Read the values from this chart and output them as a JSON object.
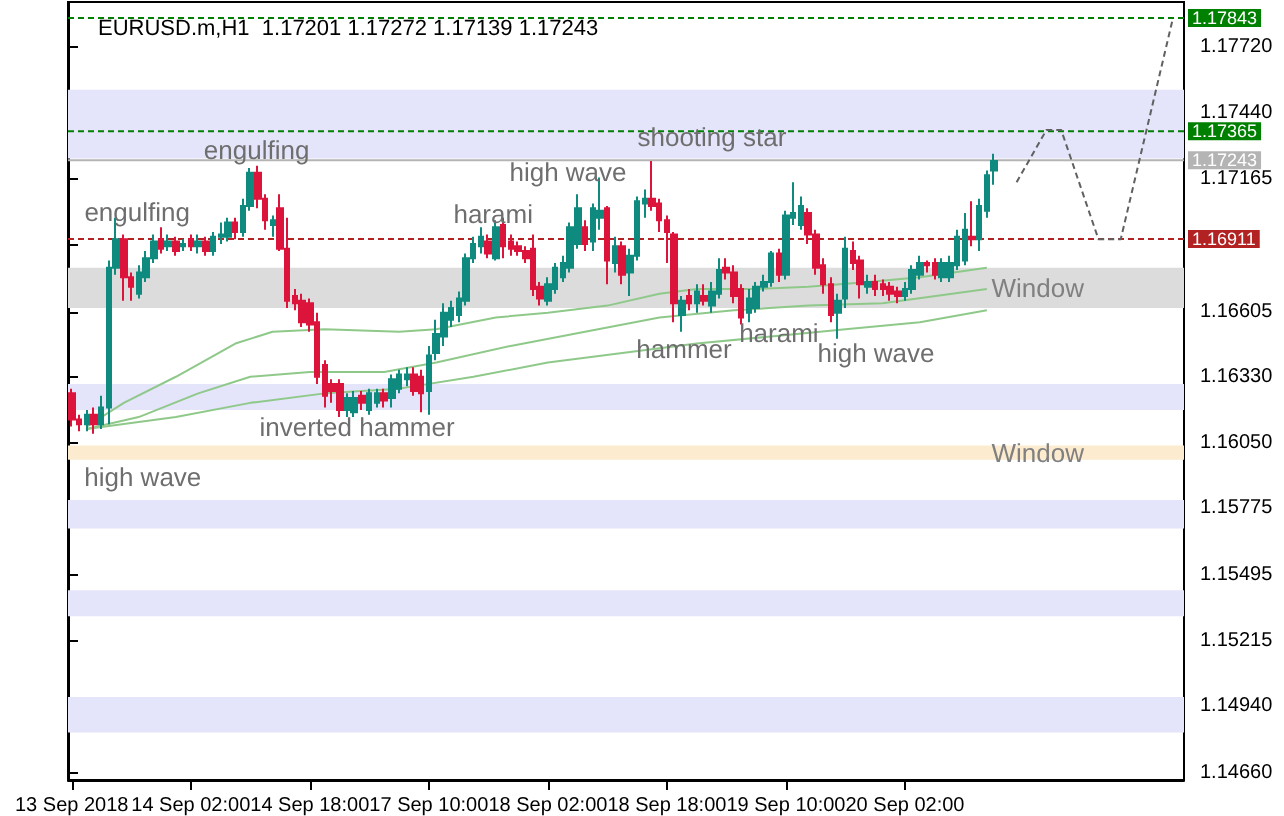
{
  "chart_data": {
    "type": "candlestick",
    "title": "EURUSD.m,H1  1.17201 1.17272 1.17139 1.17243",
    "categories": [
      "13 Sep 2018",
      null,
      null,
      null,
      null,
      null,
      null,
      null,
      null,
      null,
      null,
      null,
      null,
      null,
      null,
      null,
      "14 Sep 02:00",
      null,
      null,
      null,
      null,
      null,
      null,
      null,
      null,
      null,
      null,
      null,
      null,
      null,
      null,
      null,
      "14 Sep 18:00",
      null,
      null,
      null,
      null,
      null,
      null,
      null,
      null,
      null,
      null,
      null,
      null,
      null,
      null,
      null,
      "17 Sep 10:00",
      null,
      null,
      null,
      null,
      null,
      null,
      null,
      null,
      null,
      null,
      null,
      null,
      null,
      null,
      null,
      "18 Sep 02:00",
      null,
      null,
      null,
      null,
      null,
      null,
      null,
      null,
      null,
      null,
      null,
      null,
      null,
      null,
      null,
      "18 Sep 18:00",
      null,
      null,
      null,
      null,
      null,
      null,
      null,
      null,
      null,
      null,
      null,
      null,
      null,
      null,
      null,
      "19 Sep 10:00",
      null,
      null,
      null,
      null,
      null,
      null,
      null,
      null,
      null,
      null,
      null,
      null,
      null,
      null,
      null,
      "20 Sep 02:00",
      null,
      null,
      null,
      null,
      null,
      null,
      null,
      null,
      null,
      null,
      null,
      null,
      null,
      null,
      null,
      null,
      null,
      null,
      null,
      null,
      null,
      null,
      null,
      null,
      null,
      null,
      null,
      null,
      null,
      null,
      null,
      null,
      null,
      null,
      null,
      null,
      null
    ],
    "ohlc": [
      [
        1.1626,
        1.1628,
        1.1612,
        1.1615
      ],
      [
        1.1615,
        1.1617,
        1.161,
        1.1613
      ],
      [
        1.1613,
        1.1619,
        1.161,
        1.1617
      ],
      [
        1.1617,
        1.162,
        1.1609,
        1.1613
      ],
      [
        1.1613,
        1.1625,
        1.1611,
        1.162
      ],
      [
        1.162,
        1.1682,
        1.1613,
        1.1679
      ],
      [
        1.1679,
        1.17,
        1.1676,
        1.1691
      ],
      [
        1.1691,
        1.1693,
        1.1665,
        1.1675
      ],
      [
        1.1675,
        1.1677,
        1.1665,
        1.1671
      ],
      [
        1.1668,
        1.168,
        1.1666,
        1.1677
      ],
      [
        1.1675,
        1.1686,
        1.1673,
        1.1683
      ],
      [
        1.1683,
        1.1693,
        1.1681,
        1.169
      ],
      [
        1.1691,
        1.1696,
        1.1685,
        1.1687
      ],
      [
        1.1688,
        1.1693,
        1.1686,
        1.169
      ],
      [
        1.169,
        1.1692,
        1.1684,
        1.1686
      ],
      [
        1.1688,
        1.1691,
        1.1686,
        1.1689
      ],
      [
        1.1691,
        1.1693,
        1.1686,
        1.1688
      ],
      [
        1.1688,
        1.1693,
        1.1685,
        1.169
      ],
      [
        1.169,
        1.1692,
        1.1684,
        1.1686
      ],
      [
        1.1686,
        1.1694,
        1.1684,
        1.1692
      ],
      [
        1.1692,
        1.1698,
        1.1689,
        1.1693
      ],
      [
        1.1692,
        1.17,
        1.169,
        1.1698
      ],
      [
        1.1698,
        1.17,
        1.1691,
        1.1694
      ],
      [
        1.1694,
        1.1708,
        1.1692,
        1.1705
      ],
      [
        1.1705,
        1.1721,
        1.1703,
        1.1719
      ],
      [
        1.1719,
        1.1722,
        1.1704,
        1.1708
      ],
      [
        1.1708,
        1.171,
        1.1695,
        1.1699
      ],
      [
        1.1697,
        1.1701,
        1.1692,
        1.1699
      ],
      [
        1.1704,
        1.171,
        1.1686,
        1.1687
      ],
      [
        1.1687,
        1.17,
        1.1662,
        1.1665
      ],
      [
        1.1667,
        1.167,
        1.1661,
        1.1664
      ],
      [
        1.1665,
        1.1668,
        1.1654,
        1.1656
      ],
      [
        1.1664,
        1.1666,
        1.1652,
        1.1655
      ],
      [
        1.1656,
        1.166,
        1.163,
        1.1633
      ],
      [
        1.1638,
        1.164,
        1.162,
        1.1625
      ],
      [
        1.163,
        1.1632,
        1.1622,
        1.1627
      ],
      [
        1.163,
        1.1632,
        1.1616,
        1.1619
      ],
      [
        1.1619,
        1.1626,
        1.1616,
        1.1624
      ],
      [
        1.1618,
        1.1627,
        1.1616,
        1.1624
      ],
      [
        1.1625,
        1.1627,
        1.1619,
        1.1622
      ],
      [
        1.1619,
        1.1628,
        1.1617,
        1.1626
      ],
      [
        1.1622,
        1.1628,
        1.162,
        1.1626
      ],
      [
        1.1626,
        1.1628,
        1.162,
        1.1623
      ],
      [
        1.1624,
        1.1634,
        1.162,
        1.1632
      ],
      [
        1.1628,
        1.1636,
        1.1626,
        1.1634
      ],
      [
        1.1632,
        1.1637,
        1.1629,
        1.1634
      ],
      [
        1.1634,
        1.1637,
        1.1625,
        1.1627
      ],
      [
        1.1633,
        1.1636,
        1.1618,
        1.1626
      ],
      [
        1.1627,
        1.1646,
        1.1617,
        1.1642
      ],
      [
        1.1643,
        1.1657,
        1.164,
        1.1651
      ],
      [
        1.165,
        1.1664,
        1.1646,
        1.166
      ],
      [
        1.1657,
        1.1665,
        1.1654,
        1.1662
      ],
      [
        1.1659,
        1.1669,
        1.1656,
        1.1666
      ],
      [
        1.1665,
        1.1685,
        1.1663,
        1.1683
      ],
      [
        1.1683,
        1.1692,
        1.1681,
        1.1689
      ],
      [
        1.1688,
        1.1696,
        1.1685,
        1.1692
      ],
      [
        1.169,
        1.1693,
        1.1683,
        1.1685
      ],
      [
        1.1683,
        1.1699,
        1.1682,
        1.1696
      ],
      [
        1.1697,
        1.17,
        1.1683,
        1.1688
      ],
      [
        1.169,
        1.1693,
        1.1684,
        1.1687
      ],
      [
        1.1688,
        1.169,
        1.1684,
        1.1686
      ],
      [
        1.1686,
        1.1688,
        1.1681,
        1.1683
      ],
      [
        1.1687,
        1.1693,
        1.1667,
        1.167
      ],
      [
        1.1671,
        1.1673,
        1.1663,
        1.1666
      ],
      [
        1.1665,
        1.1675,
        1.1663,
        1.1672
      ],
      [
        1.167,
        1.1681,
        1.1668,
        1.1679
      ],
      [
        1.1675,
        1.1684,
        1.1673,
        1.1681
      ],
      [
        1.1679,
        1.1698,
        1.1677,
        1.1696
      ],
      [
        1.1689,
        1.171,
        1.1687,
        1.1704
      ],
      [
        1.1696,
        1.1699,
        1.1686,
        1.1689
      ],
      [
        1.169,
        1.1706,
        1.1686,
        1.1704
      ],
      [
        1.17,
        1.1717,
        1.1695,
        1.1703
      ],
      [
        1.1704,
        1.1705,
        1.1672,
        1.1682
      ],
      [
        1.1681,
        1.1692,
        1.1677,
        1.1688
      ],
      [
        1.1688,
        1.169,
        1.1672,
        1.1676
      ],
      [
        1.1677,
        1.1687,
        1.1667,
        1.1684
      ],
      [
        1.1684,
        1.1709,
        1.1682,
        1.1707
      ],
      [
        1.1706,
        1.1712,
        1.17,
        1.1708
      ],
      [
        1.1708,
        1.1724,
        1.1703,
        1.1705
      ],
      [
        1.1706,
        1.1708,
        1.1694,
        1.1699
      ],
      [
        1.1699,
        1.1701,
        1.1681,
        1.1694
      ],
      [
        1.1693,
        1.1694,
        1.1656,
        1.1664
      ],
      [
        1.1659,
        1.1667,
        1.1652,
        1.1665
      ],
      [
        1.1667,
        1.167,
        1.1661,
        1.1664
      ],
      [
        1.1664,
        1.1672,
        1.166,
        1.1669
      ],
      [
        1.1667,
        1.1672,
        1.1663,
        1.1665
      ],
      [
        1.1663,
        1.1673,
        1.166,
        1.1669
      ],
      [
        1.1668,
        1.1683,
        1.1666,
        1.1678
      ],
      [
        1.1679,
        1.1683,
        1.1674,
        1.1677
      ],
      [
        1.1677,
        1.168,
        1.1664,
        1.1667
      ],
      [
        1.167,
        1.1672,
        1.1655,
        1.1658
      ],
      [
        1.166,
        1.167,
        1.1656,
        1.1666
      ],
      [
        1.1662,
        1.1673,
        1.166,
        1.1671
      ],
      [
        1.1671,
        1.1676,
        1.1669,
        1.1673
      ],
      [
        1.1673,
        1.1686,
        1.1671,
        1.1685
      ],
      [
        1.1685,
        1.1687,
        1.1673,
        1.1676
      ],
      [
        1.1676,
        1.1703,
        1.1674,
        1.1701
      ],
      [
        1.17,
        1.1715,
        1.1697,
        1.1702
      ],
      [
        1.1697,
        1.1709,
        1.1695,
        1.1705
      ],
      [
        1.1702,
        1.1704,
        1.1689,
        1.1693
      ],
      [
        1.1693,
        1.1695,
        1.1676,
        1.1679
      ],
      [
        1.168,
        1.1683,
        1.1668,
        1.1672
      ],
      [
        1.1672,
        1.1675,
        1.1656,
        1.1659
      ],
      [
        1.166,
        1.1668,
        1.1649,
        1.1665
      ],
      [
        1.1666,
        1.1692,
        1.1662,
        1.1687
      ],
      [
        1.1686,
        1.169,
        1.1678,
        1.1681
      ],
      [
        1.1682,
        1.1684,
        1.1666,
        1.1672
      ],
      [
        1.1671,
        1.1676,
        1.1668,
        1.1673
      ],
      [
        1.1673,
        1.1676,
        1.1667,
        1.167
      ],
      [
        1.1672,
        1.1674,
        1.1667,
        1.167
      ],
      [
        1.1671,
        1.1673,
        1.1665,
        1.1668
      ],
      [
        1.1669,
        1.1671,
        1.1664,
        1.1667
      ],
      [
        1.1667,
        1.1673,
        1.1665,
        1.167
      ],
      [
        1.167,
        1.168,
        1.1668,
        1.1678
      ],
      [
        1.1676,
        1.1684,
        1.1674,
        1.1681
      ],
      [
        1.1681,
        1.1682,
        1.1677,
        1.168
      ],
      [
        1.1681,
        1.1683,
        1.1674,
        1.1676
      ],
      [
        1.1675,
        1.1683,
        1.1673,
        1.1681
      ],
      [
        1.1675,
        1.1684,
        1.1673,
        1.1681
      ],
      [
        1.168,
        1.1695,
        1.1678,
        1.1692
      ],
      [
        1.1682,
        1.1702,
        1.168,
        1.1695
      ],
      [
        1.1692,
        1.1707,
        1.1688,
        1.1691
      ],
      [
        1.1691,
        1.1708,
        1.1686,
        1.1705
      ],
      [
        1.1703,
        1.172,
        1.17,
        1.1718
      ],
      [
        1.172,
        1.1727,
        1.1714,
        1.1724
      ],
      null,
      null,
      null,
      null,
      null,
      null,
      null,
      null,
      null,
      null,
      null,
      null,
      null,
      null,
      null,
      null,
      null,
      null,
      null,
      null,
      null,
      null,
      null,
      null,
      null
    ],
    "series": [
      {
        "type": "line",
        "color": "#8fc98a",
        "values": [
          null,
          null,
          1.1612,
          null,
          null,
          null,
          null,
          1.1622,
          null,
          null,
          null,
          null,
          null,
          null,
          1.1633,
          null,
          null,
          null,
          null,
          null,
          null,
          null,
          1.1647,
          null,
          null,
          null,
          null,
          1.1652,
          null,
          null,
          null,
          null,
          null,
          null,
          1.1653,
          null,
          null,
          null,
          null,
          null,
          null,
          null,
          null,
          null,
          1.1652,
          null,
          null,
          null,
          null,
          1.1653,
          null,
          null,
          null,
          null,
          null,
          null,
          null,
          1.1658,
          null,
          null,
          null,
          null,
          null,
          null,
          1.166,
          null,
          null,
          null,
          null,
          null,
          null,
          null,
          1.1663,
          null,
          null,
          null,
          null,
          null,
          null,
          1.1668,
          null,
          null,
          null,
          null,
          1.167,
          null,
          null,
          null,
          null,
          null,
          null,
          null,
          1.167,
          null,
          null,
          null,
          null,
          null,
          null,
          1.1671,
          null,
          null,
          null,
          null,
          null,
          null,
          null,
          1.1673,
          null,
          null,
          null,
          null,
          null,
          null,
          1.1675,
          null,
          null,
          null,
          null,
          null,
          null,
          null,
          null,
          1.1679,
          null,
          null,
          null,
          null,
          null,
          null,
          null,
          null,
          null,
          null,
          null,
          null,
          null,
          null,
          null,
          null,
          null,
          null,
          null,
          null,
          null,
          null,
          null,
          null,
          null,
          null
        ]
      },
      {
        "type": "line",
        "color": "#8fc98a",
        "values": [
          null,
          null,
          1.1611,
          null,
          null,
          null,
          null,
          null,
          null,
          1.1616,
          null,
          null,
          null,
          null,
          null,
          null,
          null,
          1.1626,
          null,
          null,
          null,
          null,
          null,
          null,
          1.1633,
          null,
          null,
          null,
          null,
          null,
          null,
          null,
          1.1635,
          null,
          null,
          null,
          null,
          null,
          null,
          null,
          null,
          null,
          1.1635,
          null,
          null,
          null,
          null,
          null,
          null,
          1.1639,
          null,
          null,
          null,
          null,
          null,
          null,
          null,
          null,
          null,
          1.1646,
          null,
          null,
          null,
          null,
          null,
          null,
          null,
          null,
          null,
          1.1652,
          null,
          null,
          null,
          null,
          null,
          null,
          null,
          null,
          null,
          1.1658,
          null,
          null,
          null,
          null,
          null,
          null,
          null,
          null,
          null,
          1.1661,
          null,
          null,
          null,
          null,
          null,
          null,
          null,
          null,
          null,
          1.1663,
          null,
          null,
          null,
          null,
          null,
          null,
          null,
          null,
          null,
          1.1664,
          null,
          null,
          null,
          null,
          null,
          null,
          null,
          null,
          null,
          null,
          null,
          null,
          null,
          1.167,
          null,
          null,
          null,
          null,
          null,
          null,
          null,
          null,
          null,
          null,
          null,
          null,
          null,
          null,
          null,
          null,
          null,
          null,
          null,
          null,
          null,
          null,
          null,
          null,
          null,
          null
        ]
      },
      {
        "type": "line",
        "color": "#8fc98a",
        "values": [
          null,
          null,
          1.1611,
          null,
          null,
          null,
          null,
          null,
          null,
          null,
          null,
          null,
          null,
          null,
          1.1616,
          null,
          null,
          null,
          null,
          null,
          null,
          null,
          null,
          null,
          1.1622,
          null,
          null,
          null,
          null,
          null,
          null,
          null,
          null,
          null,
          1.1626,
          null,
          null,
          null,
          null,
          null,
          null,
          null,
          null,
          null,
          1.1628,
          null,
          null,
          null,
          null,
          null,
          null,
          null,
          null,
          null,
          1.1633,
          null,
          null,
          null,
          null,
          null,
          null,
          null,
          null,
          null,
          1.1639,
          null,
          null,
          null,
          null,
          null,
          null,
          null,
          null,
          null,
          1.1643,
          null,
          null,
          null,
          null,
          null,
          null,
          null,
          null,
          null,
          1.1647,
          null,
          null,
          null,
          null,
          null,
          null,
          null,
          null,
          null,
          1.165,
          null,
          null,
          null,
          null,
          null,
          null,
          null,
          null,
          null,
          1.1653,
          null,
          null,
          null,
          null,
          null,
          null,
          null,
          null,
          null,
          1.1656,
          null,
          null,
          null,
          null,
          null,
          null,
          null,
          null,
          1.1661,
          null,
          null,
          null,
          null,
          null,
          null,
          null,
          null,
          null,
          null,
          null,
          null,
          null,
          null,
          null,
          null,
          null,
          null,
          null,
          null,
          null,
          null,
          null,
          null,
          null,
          null
        ]
      },
      {
        "type": "line",
        "color": "#606060",
        "line_style": "dashed",
        "values": [
          null,
          null,
          null,
          null,
          null,
          null,
          null,
          null,
          null,
          null,
          null,
          null,
          null,
          null,
          null,
          null,
          null,
          null,
          null,
          null,
          null,
          null,
          null,
          null,
          null,
          null,
          null,
          null,
          null,
          null,
          null,
          null,
          null,
          null,
          null,
          null,
          null,
          null,
          null,
          null,
          null,
          null,
          null,
          null,
          null,
          null,
          null,
          null,
          null,
          null,
          null,
          null,
          null,
          null,
          null,
          null,
          null,
          null,
          null,
          null,
          null,
          null,
          null,
          null,
          null,
          null,
          null,
          null,
          null,
          null,
          null,
          null,
          null,
          null,
          null,
          null,
          null,
          null,
          null,
          null,
          null,
          null,
          null,
          null,
          null,
          null,
          null,
          null,
          null,
          null,
          null,
          null,
          null,
          null,
          null,
          null,
          null,
          null,
          null,
          null,
          null,
          null,
          null,
          null,
          null,
          null,
          null,
          null,
          null,
          null,
          null,
          null,
          null,
          null,
          null,
          null,
          null,
          null,
          null,
          null,
          null,
          null,
          null,
          null,
          null,
          null,
          null,
          1.1715,
          null,
          null,
          null,
          1.1737,
          null,
          1.1737,
          null,
          null,
          null,
          null,
          1.1691,
          null,
          null,
          1.1691,
          null,
          null,
          null,
          null,
          null,
          null,
          1.1784,
          null
        ]
      }
    ],
    "ylim": [
      1.1463,
      1.1791
    ],
    "yticks": [
      {
        "value": 1.1466,
        "label": "1.14660"
      },
      {
        "value": 1.1494,
        "label": "1.14940"
      },
      {
        "value": 1.15215,
        "label": "1.15215"
      },
      {
        "value": 1.15495,
        "label": "1.15495"
      },
      {
        "value": 1.15775,
        "label": "1.15775"
      },
      {
        "value": 1.1605,
        "label": "1.16050"
      },
      {
        "value": 1.1633,
        "label": "1.16330"
      },
      {
        "value": 1.16605,
        "label": "1.16605"
      },
      {
        "value": 1.16885,
        "label": null
      },
      {
        "value": 1.17165,
        "label": "1.17165"
      },
      {
        "value": 1.1744,
        "label": "1.17440"
      },
      {
        "value": 1.1772,
        "label": "1.17720"
      }
    ],
    "ref_lines": [
      {
        "axis": "y",
        "value": 1.17843,
        "label": "1.17843",
        "color": "#008000",
        "line_style": "dashed"
      },
      {
        "axis": "y",
        "value": 1.17365,
        "label": "1.17365",
        "color": "#008000",
        "line_style": "dashed"
      },
      {
        "axis": "y",
        "value": 1.17243,
        "label": "1.17243",
        "color": "#b4b4b4",
        "line_style": "solid"
      },
      {
        "axis": "y",
        "value": 1.16911,
        "label": "1.16911",
        "color": "#b22222",
        "line_style": "dashed"
      }
    ],
    "bands": [
      {
        "axis": "y",
        "from": 1.1725,
        "to": 1.1754,
        "label": null,
        "color": "#e4e4fa"
      },
      {
        "axis": "y",
        "from": 1.1662,
        "to": 1.1679,
        "label": "Window",
        "color": "#dcdcdc"
      },
      {
        "axis": "y",
        "from": 1.1619,
        "to": 1.163,
        "label": null,
        "color": "#e4e4fa"
      },
      {
        "axis": "y",
        "from": 1.1598,
        "to": 1.1604,
        "label": "Window",
        "color": "#fdebcf"
      },
      {
        "axis": "y",
        "from": 1.1569,
        "to": 1.1581,
        "label": null,
        "color": "#e4e4fa"
      },
      {
        "axis": "y",
        "from": 1.1532,
        "to": 1.1543,
        "label": null,
        "color": "#e4e4fa"
      },
      {
        "axis": "y",
        "from": 1.1483,
        "to": 1.1498,
        "label": null,
        "color": "#e4e4fa"
      }
    ],
    "annotations": [
      "engulfing",
      "engulfing",
      "harami",
      "high wave",
      "shooting star",
      "hammer",
      "harami",
      "high wave",
      "inverted hammer",
      "high wave"
    ],
    "grid": false,
    "marker": "none"
  }
}
